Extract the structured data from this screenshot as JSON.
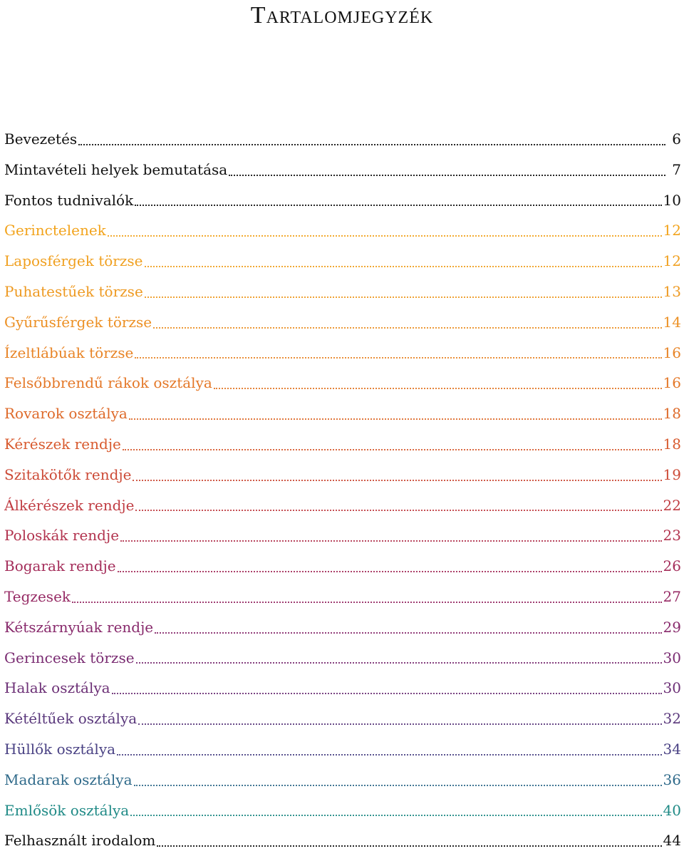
{
  "document": {
    "title": "Tartalomjegyzék"
  },
  "toc": {
    "entries": [
      {
        "label": "Bevezetés",
        "page": "6",
        "color": "#111111"
      },
      {
        "label": "Mintavételi helyek bemutatása",
        "page": "7",
        "color": "#111111"
      },
      {
        "label": "Fontos tudnivalók",
        "page": "10",
        "color": "#111111"
      },
      {
        "label": "Gerinctelenek",
        "page": "12",
        "color": "#f2a31b"
      },
      {
        "label": "Laposférgek törzse",
        "page": "12",
        "color": "#f0a020"
      },
      {
        "label": "Puhatestűek törzse",
        "page": "13",
        "color": "#ee9a22"
      },
      {
        "label": "Gyűrűsférgek törzse",
        "page": "14",
        "color": "#ec9024"
      },
      {
        "label": "Ízeltlábúak törzse",
        "page": "16",
        "color": "#e88426"
      },
      {
        "label": "Felsőbbrendű rákok osztálya",
        "page": "16",
        "color": "#e47828"
      },
      {
        "label": "Rovarok osztálya",
        "page": "18",
        "color": "#de6a2a"
      },
      {
        "label": "Kérészek rendje",
        "page": "18",
        "color": "#d85a2e"
      },
      {
        "label": "Szitakötők rendje",
        "page": "19",
        "color": "#cc4a36"
      },
      {
        "label": "Álkérészek rendje",
        "page": "22",
        "color": "#c03c42"
      },
      {
        "label": "Poloskák rendje",
        "page": "23",
        "color": "#b2334e"
      },
      {
        "label": "Bogarak rendje",
        "page": "26",
        "color": "#a42d5a"
      },
      {
        "label": "Tegzesek",
        "page": "27",
        "color": "#962a64"
      },
      {
        "label": "Kétszárnyúak rendje",
        "page": "29",
        "color": "#882a6c"
      },
      {
        "label": "Gerincesek törzse",
        "page": "30",
        "color": "#7a2c72"
      },
      {
        "label": "Halak osztálya",
        "page": "30",
        "color": "#6c3076"
      },
      {
        "label": "Kétéltűek osztálya",
        "page": "32",
        "color": "#5a387c"
      },
      {
        "label": "Hüllők osztálya",
        "page": "34",
        "color": "#4a4284"
      },
      {
        "label": "Madarak osztálya",
        "page": "36",
        "color": "#2f6a8a"
      },
      {
        "label": "Emlősök osztálya",
        "page": "40",
        "color": "#1f8a86"
      },
      {
        "label": "Felhasznált irodalom",
        "page": "44",
        "color": "#111111"
      }
    ]
  }
}
